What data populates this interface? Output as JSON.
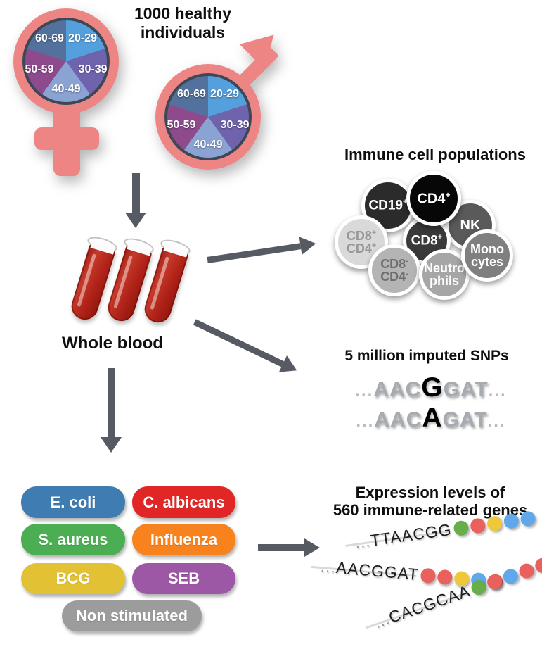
{
  "header": {
    "title": "1000 healthy individuals"
  },
  "cohort": {
    "symbol_color": "#ee8585",
    "age_groups": [
      {
        "label": "20-29",
        "color": "#55a0dc"
      },
      {
        "label": "30-39",
        "color": "#7063ad"
      },
      {
        "label": "40-49",
        "color": "#8ba3d3"
      },
      {
        "label": "50-59",
        "color": "#8d4b8d"
      },
      {
        "label": "60-69",
        "color": "#52719c"
      }
    ]
  },
  "whole_blood": {
    "label": "Whole blood",
    "tube_count": 3,
    "tube_color": "#b3231f"
  },
  "immune_cells": {
    "title": "Immune cell populations",
    "cells": [
      {
        "id": "cd19",
        "lines": [
          [
            "CD19",
            "+"
          ]
        ],
        "bg": "#2b2b2b",
        "fg": "#ffffff"
      },
      {
        "id": "cd4",
        "lines": [
          [
            "CD4",
            "+"
          ]
        ],
        "bg": "#070707",
        "fg": "#ffffff"
      },
      {
        "id": "nk",
        "lines": [
          [
            "NK",
            ""
          ]
        ],
        "bg": "#5a5a5a",
        "fg": "#ffffff"
      },
      {
        "id": "cd8",
        "lines": [
          [
            "CD8",
            "+"
          ]
        ],
        "bg": "#3a3a3a",
        "fg": "#ffffff"
      },
      {
        "id": "cd8pos-cd4pos",
        "lines": [
          [
            "CD8",
            "+"
          ],
          [
            "CD4",
            "+"
          ]
        ],
        "bg": "#d9d9d9",
        "fg": "#979797"
      },
      {
        "id": "cd8neg-cd4neg",
        "lines": [
          [
            "CD8",
            "-"
          ],
          [
            "CD4",
            "-"
          ]
        ],
        "bg": "#b4b4b4",
        "fg": "#6e6e6e"
      },
      {
        "id": "neutrophils",
        "lines": [
          [
            "Neutro",
            ""
          ],
          [
            "phils",
            ""
          ]
        ],
        "bg": "#a6a6a6",
        "fg": "#ffffff"
      },
      {
        "id": "monocytes",
        "lines": [
          [
            "Mono",
            ""
          ],
          [
            "cytes",
            ""
          ]
        ],
        "bg": "#7f7f7f",
        "fg": "#ffffff"
      }
    ]
  },
  "snps": {
    "title": "5 million imputed SNPs",
    "ellipsis": "...",
    "sequences": [
      {
        "before": "AAC",
        "variant": "G",
        "after": "GAT"
      },
      {
        "before": "AAC",
        "variant": "A",
        "after": "GAT"
      }
    ]
  },
  "stimuli": {
    "items": [
      {
        "id": "e-coli",
        "label": "E. coli",
        "color": "#3e7cb1"
      },
      {
        "id": "c-albicans",
        "label": "C. albicans",
        "color": "#e12726"
      },
      {
        "id": "s-aureus",
        "label": "S. aureus",
        "color": "#4cae52"
      },
      {
        "id": "influenza",
        "label": "Influenza",
        "color": "#f8821e"
      },
      {
        "id": "bcg",
        "label": "BCG",
        "color": "#e2c135"
      },
      {
        "id": "seb",
        "label": "SEB",
        "color": "#9c57a5"
      },
      {
        "id": "non-stimulated",
        "label": "Non stimulated",
        "color": "#9c9c9c"
      }
    ]
  },
  "expression": {
    "title_line1": "Expression levels of",
    "title_line2": "560 immune-related genes",
    "dot_colors": {
      "green": "#67ad4a",
      "red": "#e9605c",
      "yellow": "#eec83b",
      "blue": "#61a8ea"
    },
    "rows": [
      {
        "sequence": "...TTAACGG",
        "dots": [
          "green",
          "red",
          "yellow",
          "blue",
          "blue"
        ]
      },
      {
        "sequence": "...AACGGAT",
        "dots": [
          "red",
          "red",
          "yellow",
          "blue",
          "red"
        ]
      },
      {
        "sequence": "...CACGCAA",
        "dots": [
          "green",
          "red",
          "blue",
          "red",
          "red"
        ]
      }
    ]
  },
  "arrows": {
    "color": "#565b63"
  }
}
